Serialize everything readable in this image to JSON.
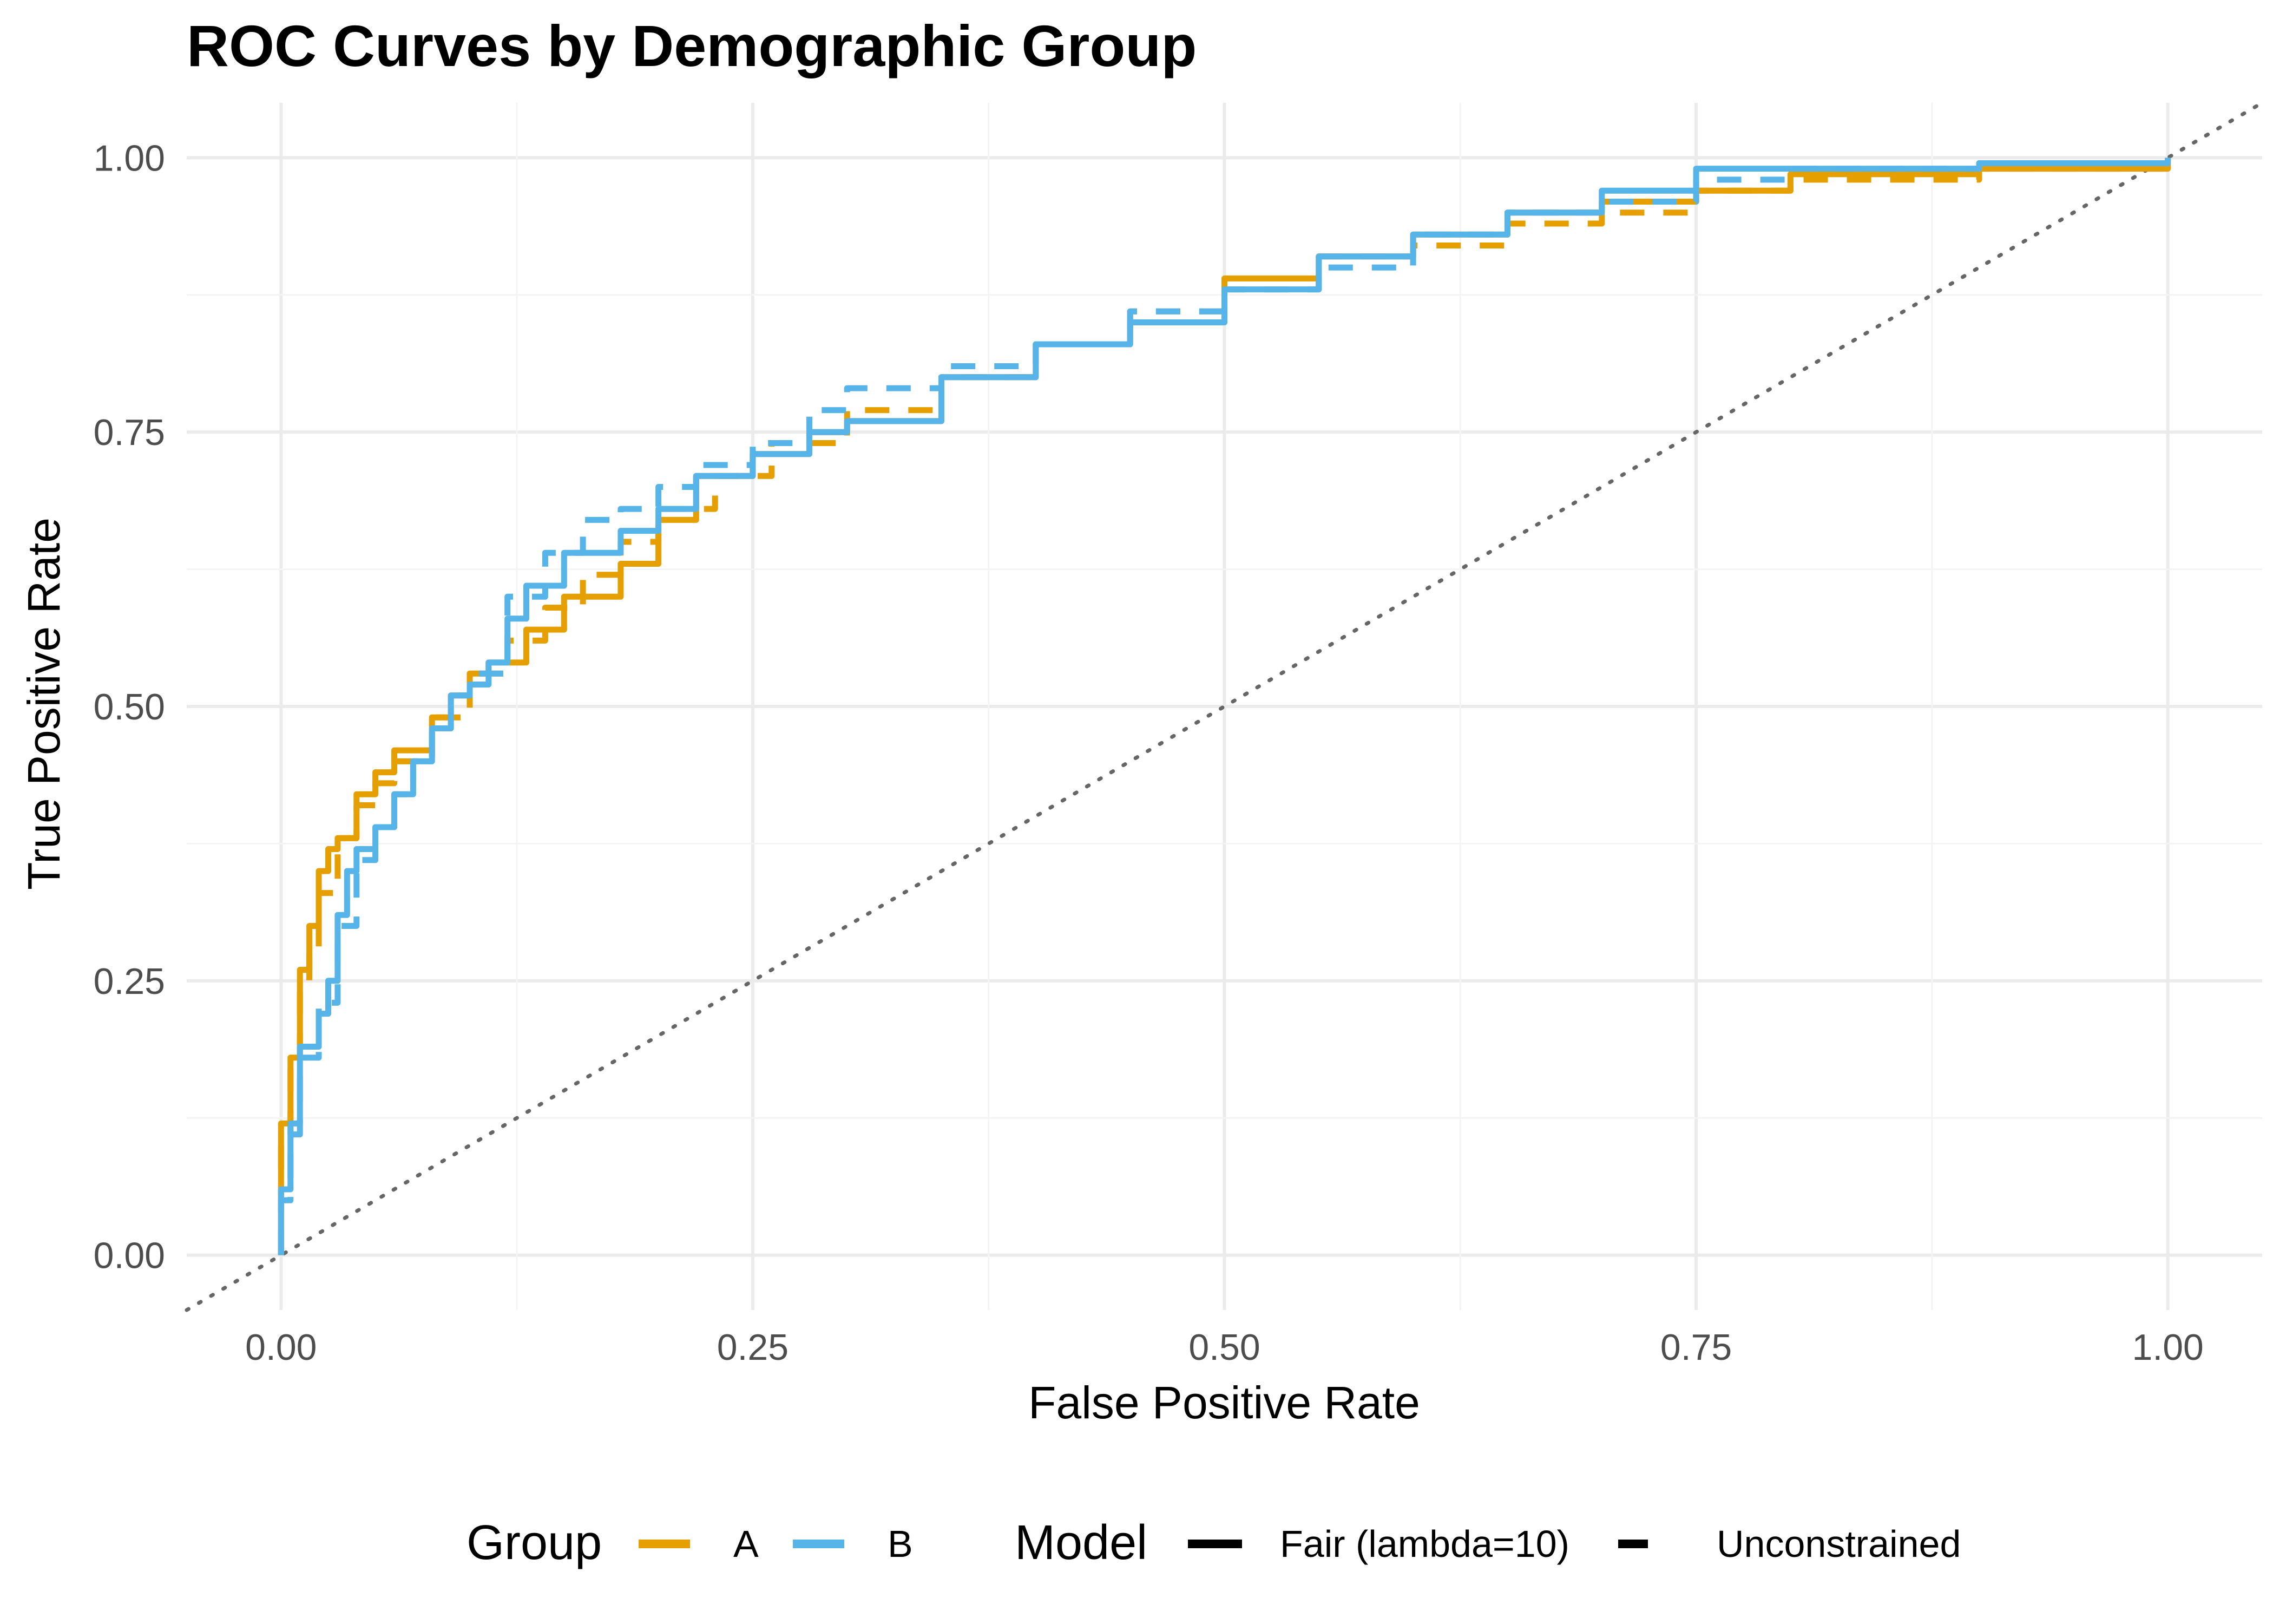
{
  "chart_data": {
    "type": "line",
    "title": "ROC Curves by Demographic Group",
    "xlabel": "False Positive Rate",
    "ylabel": "True Positive Rate",
    "xlim": [
      -0.05,
      1.05
    ],
    "ylim": [
      -0.05,
      1.05
    ],
    "x_ticks": [
      "0.00",
      "0.25",
      "0.50",
      "0.75",
      "1.00"
    ],
    "y_ticks": [
      "0.00",
      "0.25",
      "0.50",
      "0.75",
      "1.00"
    ],
    "grid": true,
    "legend_position": "bottom",
    "reference_line": {
      "style": "dotted",
      "color": "#666666",
      "x": [
        -0.05,
        1.05
      ],
      "y": [
        -0.05,
        1.05
      ]
    },
    "legend": {
      "group_title": "Group",
      "groups": [
        {
          "label": "A",
          "color": "#E69F00"
        },
        {
          "label": "B",
          "color": "#56B4E9"
        }
      ],
      "model_title": "Model",
      "models": [
        {
          "label": "Fair (lambda=10)",
          "linetype": "solid"
        },
        {
          "label": "Unconstrained",
          "linetype": "dashed"
        }
      ]
    },
    "series": [
      {
        "name": "A",
        "model": "Fair (lambda=10)",
        "color": "#E69F00",
        "linetype": "solid",
        "x": [
          0.0,
          0.0,
          0.005,
          0.01,
          0.015,
          0.02,
          0.025,
          0.03,
          0.04,
          0.05,
          0.06,
          0.08,
          0.09,
          0.1,
          0.11,
          0.13,
          0.15,
          0.18,
          0.2,
          0.22,
          0.25,
          0.28,
          0.3,
          0.35,
          0.4,
          0.45,
          0.5,
          0.55,
          0.6,
          0.65,
          0.7,
          0.75,
          0.8,
          0.9,
          1.0
        ],
        "y": [
          0.0,
          0.12,
          0.18,
          0.26,
          0.3,
          0.35,
          0.37,
          0.38,
          0.42,
          0.44,
          0.46,
          0.49,
          0.51,
          0.53,
          0.54,
          0.57,
          0.6,
          0.63,
          0.67,
          0.71,
          0.73,
          0.75,
          0.76,
          0.8,
          0.83,
          0.85,
          0.89,
          0.91,
          0.93,
          0.95,
          0.96,
          0.97,
          0.985,
          0.99,
          1.0
        ]
      },
      {
        "name": "A",
        "model": "Unconstrained",
        "color": "#E69F00",
        "linetype": "dashed",
        "x": [
          0.0,
          0.0,
          0.005,
          0.01,
          0.015,
          0.02,
          0.03,
          0.04,
          0.05,
          0.06,
          0.08,
          0.1,
          0.12,
          0.14,
          0.16,
          0.18,
          0.2,
          0.23,
          0.26,
          0.3,
          0.35,
          0.4,
          0.45,
          0.5,
          0.55,
          0.6,
          0.65,
          0.7,
          0.75,
          0.8,
          0.9,
          1.0
        ],
        "y": [
          0.0,
          0.1,
          0.17,
          0.24,
          0.28,
          0.33,
          0.38,
          0.41,
          0.43,
          0.45,
          0.49,
          0.53,
          0.56,
          0.59,
          0.62,
          0.65,
          0.68,
          0.71,
          0.74,
          0.77,
          0.8,
          0.83,
          0.86,
          0.88,
          0.91,
          0.92,
          0.94,
          0.95,
          0.97,
          0.98,
          0.99,
          1.0
        ]
      },
      {
        "name": "B",
        "model": "Fair (lambda=10)",
        "color": "#56B4E9",
        "linetype": "solid",
        "x": [
          0.0,
          0.0,
          0.005,
          0.01,
          0.02,
          0.025,
          0.03,
          0.035,
          0.04,
          0.05,
          0.06,
          0.07,
          0.08,
          0.09,
          0.1,
          0.11,
          0.12,
          0.13,
          0.15,
          0.18,
          0.2,
          0.22,
          0.25,
          0.28,
          0.3,
          0.35,
          0.4,
          0.45,
          0.5,
          0.55,
          0.6,
          0.65,
          0.7,
          0.75,
          0.8,
          0.9,
          1.0
        ],
        "y": [
          0.0,
          0.06,
          0.12,
          0.19,
          0.22,
          0.25,
          0.31,
          0.35,
          0.37,
          0.39,
          0.42,
          0.45,
          0.48,
          0.51,
          0.52,
          0.54,
          0.58,
          0.61,
          0.64,
          0.66,
          0.68,
          0.71,
          0.73,
          0.75,
          0.76,
          0.8,
          0.83,
          0.85,
          0.88,
          0.91,
          0.93,
          0.95,
          0.97,
          0.99,
          0.99,
          0.995,
          1.0
        ]
      },
      {
        "name": "B",
        "model": "Unconstrained",
        "color": "#56B4E9",
        "linetype": "dashed",
        "x": [
          0.0,
          0.0,
          0.005,
          0.01,
          0.02,
          0.03,
          0.04,
          0.05,
          0.06,
          0.07,
          0.08,
          0.09,
          0.1,
          0.12,
          0.14,
          0.16,
          0.18,
          0.2,
          0.22,
          0.25,
          0.28,
          0.3,
          0.35,
          0.4,
          0.45,
          0.5,
          0.55,
          0.6,
          0.65,
          0.7,
          0.75,
          0.8,
          0.9,
          1.0
        ],
        "y": [
          0.0,
          0.05,
          0.11,
          0.18,
          0.23,
          0.3,
          0.36,
          0.39,
          0.42,
          0.45,
          0.48,
          0.51,
          0.53,
          0.6,
          0.64,
          0.67,
          0.68,
          0.7,
          0.72,
          0.74,
          0.77,
          0.79,
          0.81,
          0.83,
          0.86,
          0.88,
          0.9,
          0.93,
          0.95,
          0.96,
          0.98,
          0.99,
          0.995,
          1.0
        ]
      }
    ]
  }
}
